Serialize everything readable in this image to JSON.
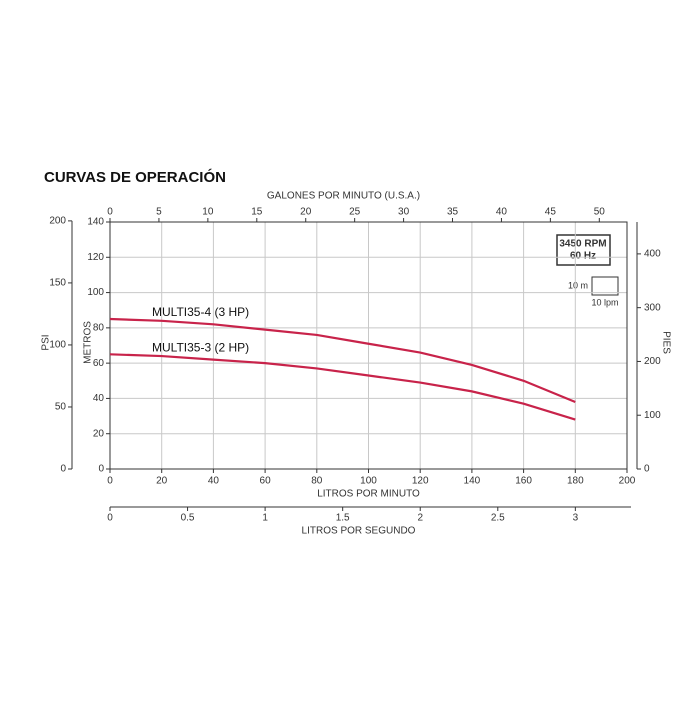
{
  "chart_data": {
    "type": "line",
    "title": "CURVAS DE OPERACIÓN",
    "x_label": "LITROS POR MINUTO",
    "y_label": "METROS",
    "x": [
      0,
      20,
      40,
      60,
      80,
      100,
      120,
      140,
      160,
      180
    ],
    "series": [
      {
        "name": "MULTI35-4 (3 HP)",
        "color": "#c8234a",
        "values": [
          85,
          84,
          82,
          79,
          76,
          71,
          66,
          59,
          50,
          38
        ]
      },
      {
        "name": "MULTI35-3 (2 HP)",
        "color": "#c8234a",
        "values": [
          65,
          64,
          62,
          60,
          57,
          53,
          49,
          44,
          37,
          28
        ]
      }
    ],
    "xlim": [
      0,
      200
    ],
    "xticks": [
      0,
      20,
      40,
      60,
      80,
      100,
      120,
      140,
      160,
      180,
      200
    ],
    "ylim": [
      0,
      140
    ],
    "yticks": [
      0,
      20,
      40,
      60,
      80,
      100,
      120,
      140
    ],
    "x2_label": "GALONES POR MINUTO (U.S.A.)",
    "x2lim": [
      0,
      52.83
    ],
    "x2ticks": [
      0,
      5,
      10,
      15,
      20,
      25,
      30,
      35,
      40,
      45,
      50
    ],
    "x3_label": "LITROS POR SEGUNDO",
    "x3lim": [
      0,
      3.333
    ],
    "x3ticks": [
      0,
      0.5,
      1,
      1.5,
      2,
      2.5,
      3
    ],
    "y2_label": "PSI",
    "y2lim": [
      0,
      199.1
    ],
    "y2ticks": [
      0,
      50,
      100,
      150,
      200
    ],
    "y3_label": "PIES",
    "y3lim": [
      0,
      459.3
    ],
    "y3ticks": [
      0,
      100,
      200,
      300,
      400
    ],
    "annotations": [
      "3450 RPM",
      "60 Hz"
    ],
    "scale_labels": [
      "10 m",
      "10 lpm"
    ],
    "grid": true
  }
}
